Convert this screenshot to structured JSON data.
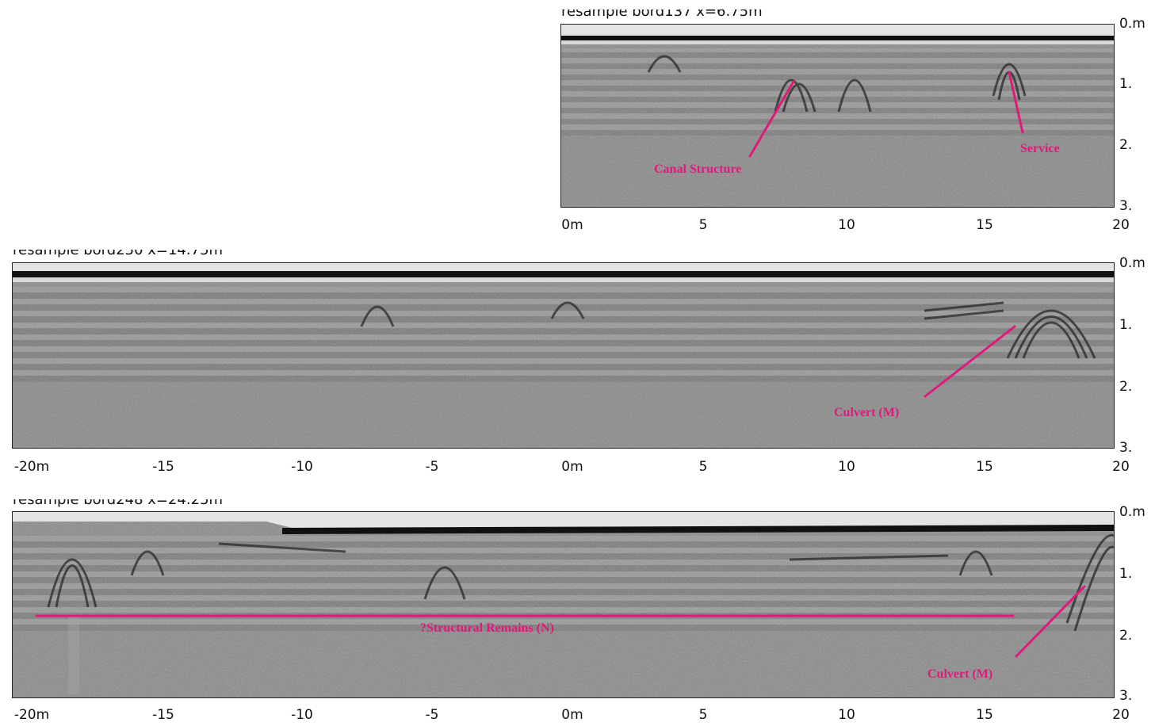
{
  "colors": {
    "annotation": "#e0197d",
    "radar_base": "#8c8c8c"
  },
  "panels": [
    {
      "title": "resample bord137   x=6.75m",
      "depth_labels": [
        "0.m",
        "1.",
        "2.",
        "3."
      ],
      "x_labels": [
        "0m",
        "5",
        "10",
        "15",
        "20"
      ],
      "annotations": [
        {
          "label": "Canal Structure"
        },
        {
          "label": "Service"
        }
      ]
    },
    {
      "title": "resample bord250   x=14.75m",
      "depth_labels": [
        "0.m",
        "1.",
        "2.",
        "3."
      ],
      "x_labels": [
        "-20m",
        "-15",
        "-10",
        "-5",
        "0m",
        "5",
        "10",
        "15",
        "20"
      ],
      "annotations": [
        {
          "label": "Culvert  (M)"
        }
      ]
    },
    {
      "title": "resample bord248   x=24.25m",
      "depth_labels": [
        "0.m",
        "1.",
        "2.",
        "3."
      ],
      "x_labels": [
        "-20m",
        "-15",
        "-10",
        "-5",
        "0m",
        "5",
        "10",
        "15",
        "20"
      ],
      "annotations": [
        {
          "label": "?Structural  Remains  (N)"
        },
        {
          "label": "Culvert  (M)"
        }
      ]
    }
  ]
}
